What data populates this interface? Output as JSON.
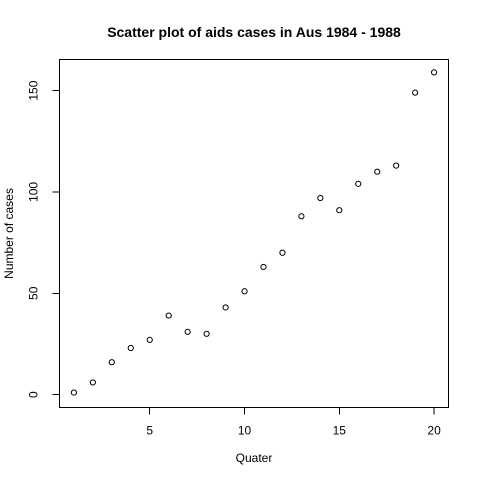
{
  "chart_data": {
    "type": "scatter",
    "title": "Scatter plot of aids cases in Aus 1984 - 1988",
    "xlabel": "Quater",
    "ylabel": "Number of cases",
    "xlim": [
      0.24,
      20.76
    ],
    "ylim": [
      -6.36,
      165.36
    ],
    "x_ticks": [
      5,
      10,
      15,
      20
    ],
    "y_ticks": [
      0,
      50,
      100,
      150
    ],
    "grid": false,
    "point_style": "open-circle",
    "colors": {
      "points": "#000000",
      "axes": "#000000",
      "background": "#ffffff"
    },
    "series": [
      {
        "x": [
          1,
          2,
          3,
          4,
          5,
          6,
          7,
          8,
          9,
          10,
          11,
          12,
          13,
          14,
          15,
          16,
          17,
          18,
          19,
          20
        ],
        "y": [
          1,
          6,
          16,
          23,
          27,
          39,
          31,
          30,
          43,
          51,
          63,
          70,
          88,
          97,
          91,
          104,
          110,
          113,
          149,
          159
        ]
      }
    ]
  }
}
